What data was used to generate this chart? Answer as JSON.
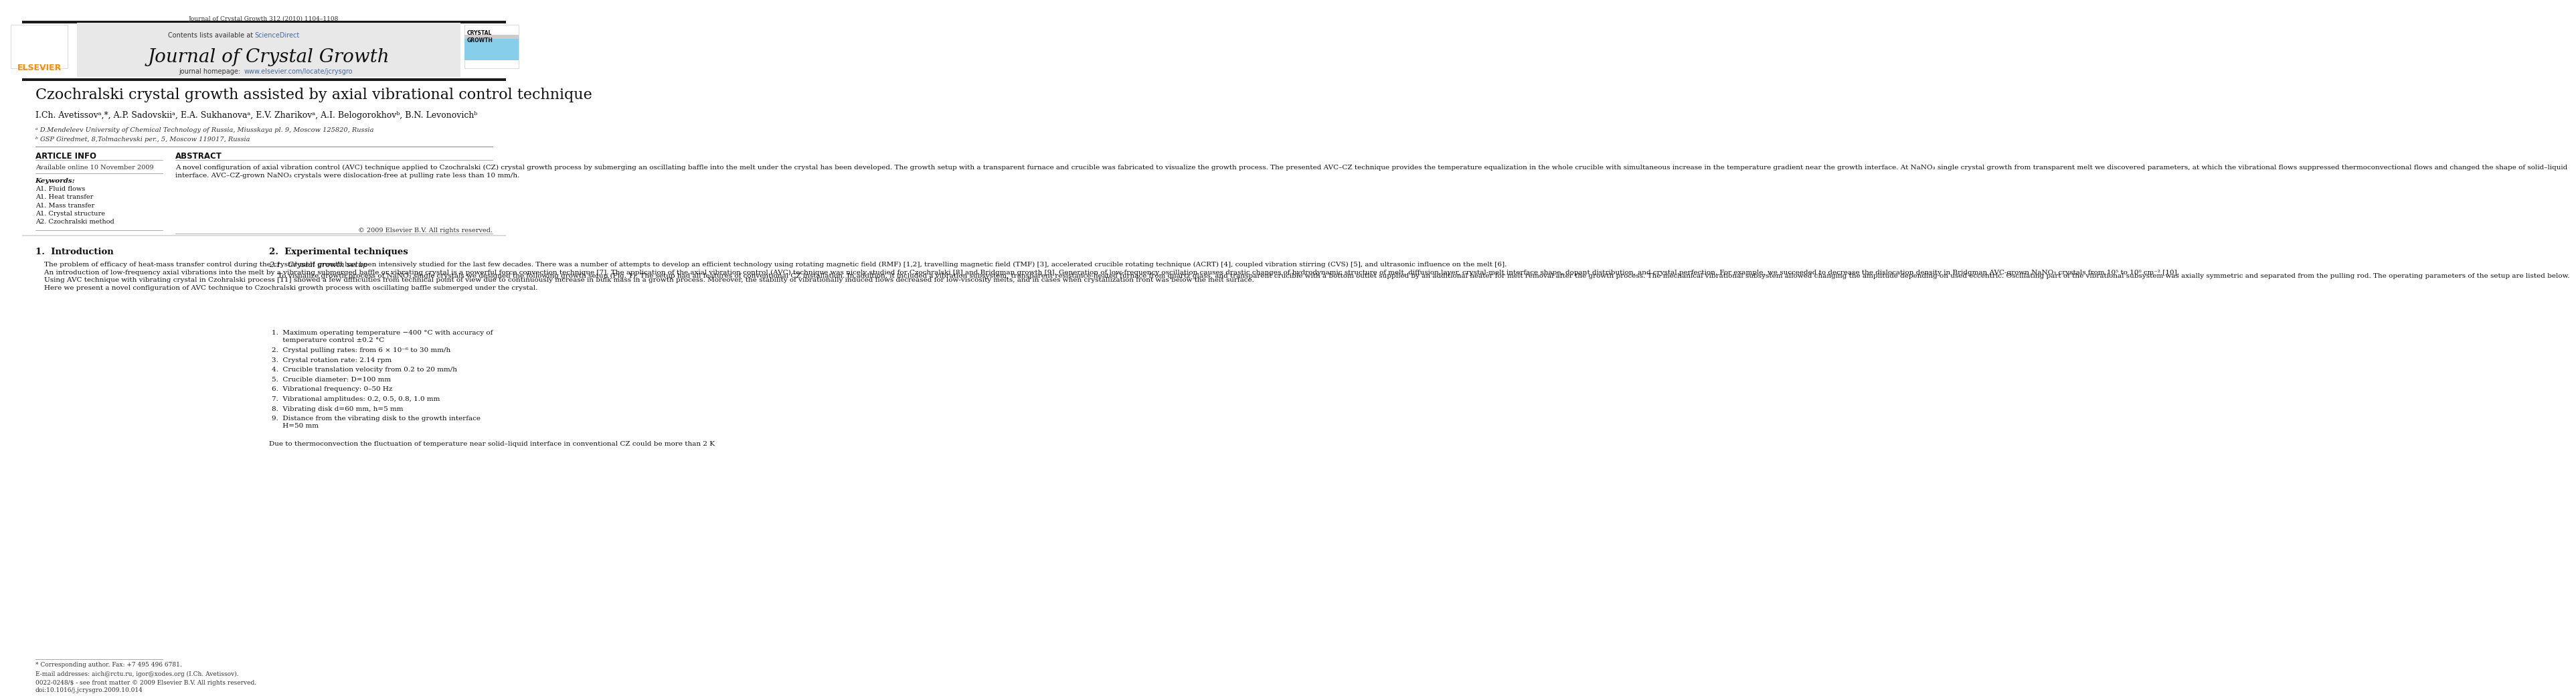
{
  "page_width": 9.92,
  "page_height": 13.23,
  "bg_color": "#ffffff",
  "top_journal_ref": "Journal of Crystal Growth 312 (2010) 1104–1108",
  "header_bg": "#e8e8e8",
  "contents_text": "Contents lists available at",
  "sciencedirect_text": "ScienceDirect",
  "sciencedirect_color": "#4169aa",
  "journal_name": "Journal of Crystal Growth",
  "homepage_text": "journal homepage: ",
  "homepage_url": "www.elsevier.com/locate/jcrysgro",
  "homepage_url_color": "#4169aa",
  "elsevier_logo_color": "#ff8c00",
  "top_bar_color": "#1a1a1a",
  "paper_title": "Czochralski crystal growth assisted by axial vibrational control technique",
  "authors": "I.Ch. Avetissovᵃ,*, A.P. Sadovskiiᵃ, E.A. Sukhanovaᵃ, E.V. Zharikovᵃ, A.I. Belogorokhovᵇ, B.N. Levonovichᵇ",
  "affil_a": "ᵃ D.Mendeleev University of Chemical Technology of Russia, Miusskaya pl. 9, Moscow 125820, Russia",
  "affil_b": "ᵇ GSP Giredmet, 8,Tolmachevski per., 5, Moscow 119017, Russia",
  "article_info_header": "ARTICLE INFO",
  "abstract_header": "ABSTRACT",
  "available_online": "Available online 10 November 2009",
  "keywords_label": "Keywords:",
  "keywords": [
    "A1. Fluid flows",
    "A1. Heat transfer",
    "A1. Mass transfer",
    "A1. Crystal structure",
    "A2. Czochralski method"
  ],
  "abstract_text": "A novel configuration of axial vibration control (AVC) technique applied to Czochralski (CZ) crystal growth process by submerging an oscillating baffle into the melt under the crystal has been developed. The growth setup with a transparent furnace and crucible was fabricated to visualize the growth process. The presented AVC–CZ technique provides the temperature equalization in the whole crucible with simultaneous increase in the temperature gradient near the growth interface. At NaNO₃ single crystal growth from transparent melt we discovered parameters, at which the vibrational flows suppressed thermoconvectional flows and changed the shape of solid–liquid interface. AVC–CZ-grown NaNO₃ crystals were dislocation-free at pulling rate less than 10 mm/h.",
  "copyright_text": "© 2009 Elsevier B.V. All rights reserved.",
  "section1_title": "1.  Introduction",
  "section2_title": "2.  Experimental techniques",
  "subsection21_title": "2.1.  Crystal growth setup",
  "footer_corr": "* Corresponding author. Fax: +7 495 496 6781.",
  "footer_email": "E-mail addresses: aich@rctu.ru, igor@xodes.org (I.Ch. Avetissov).",
  "footer_issn": "0022-0248/$ - see front matter © 2009 Elsevier B.V. All rights reserved.",
  "footer_doi": "doi:10.1016/j.jcrysgro.2009.10.014",
  "last_line": "Due to thermoconvection the fluctuation of temperature near solid–liquid interface in conventional CZ could be more than 2 K"
}
